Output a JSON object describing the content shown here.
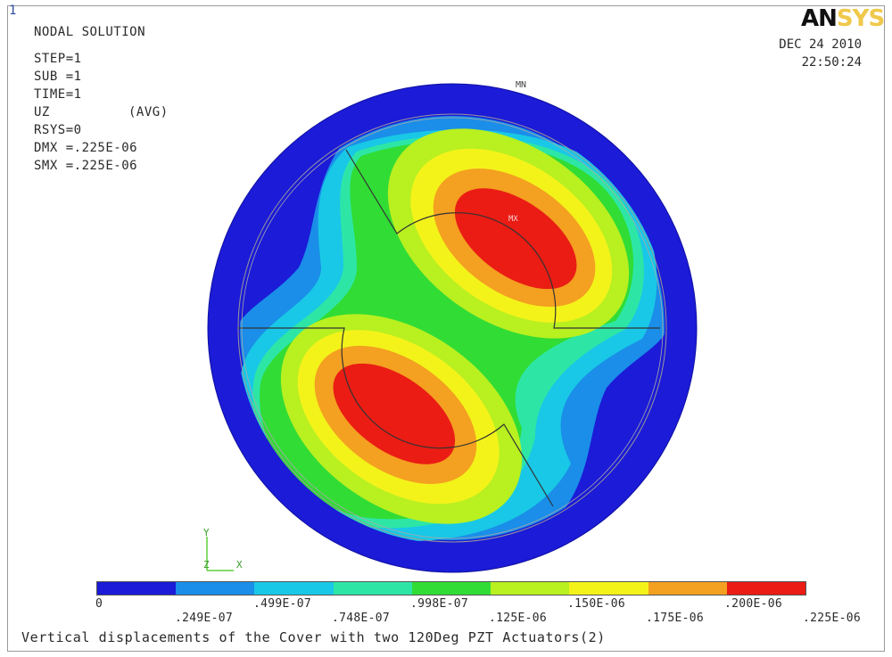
{
  "window_number": "1",
  "logo": {
    "part1": "AN",
    "part2": "SYS"
  },
  "info": {
    "line1": "NODAL SOLUTION",
    "line2": "STEP=1",
    "line3": "SUB =1",
    "line4": "TIME=1",
    "line5_left": "UZ",
    "line5_right": "(AVG)",
    "line6": "RSYS=0",
    "line7": "DMX =.225E-06",
    "line8": "SMX =.225E-06"
  },
  "date": {
    "day": "DEC 24 2010",
    "time": "22:50:24"
  },
  "markers": {
    "min": "MN",
    "max": "MX"
  },
  "axes": {
    "y": "Y",
    "z": "Z",
    "x": "X"
  },
  "legend": {
    "colors": [
      "#1b1bd8",
      "#1a8ee8",
      "#19c8e6",
      "#2de6a6",
      "#31dc35",
      "#b8f020",
      "#f3f31a",
      "#f4a020",
      "#ea1c14"
    ],
    "labels_top": [
      "0",
      ".499E-07",
      ".998E-07",
      ".150E-06",
      ".200E-06"
    ],
    "labels_bottom": [
      ".249E-07",
      ".748E-07",
      ".125E-06",
      ".175E-06",
      ".225E-06"
    ]
  },
  "caption": "Vertical displacements of the Cover with two 120Deg PZT Actuators(2)"
}
